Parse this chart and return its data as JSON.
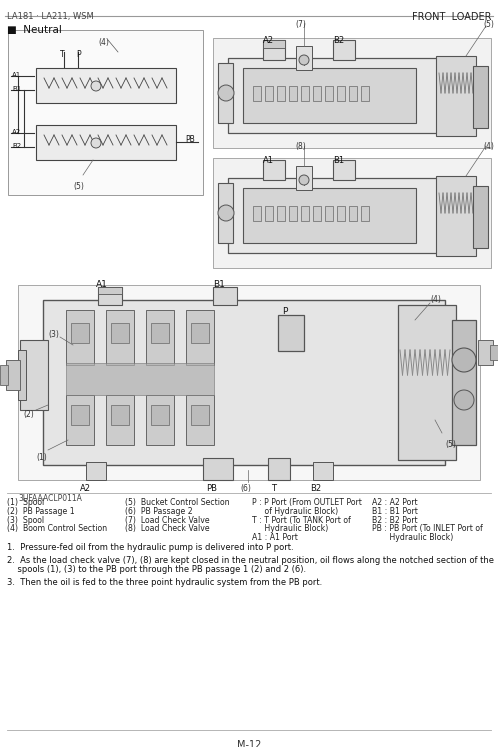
{
  "page_bg": "#f5f5f0",
  "header_left": "LA181 · LA211, WSM",
  "header_right": "FRONT  LOADER",
  "section_title": "■  Neutral",
  "footer_page": "M-12",
  "diagram_code": "3UFAAACLP011A",
  "legend_col1": [
    "(1)  Spool",
    "(2)  PB Passage 1",
    "(3)  Spool",
    "(4)  Boom Control Section"
  ],
  "legend_col2": [
    "(5)  Bucket Control Section",
    "(6)  PB Passage 2",
    "(7)  Load Check Valve",
    "(8)  Load Check Valve"
  ],
  "legend_col3_line1": "P : P Port (From OUTLET Port",
  "legend_col3_line2": "     of Hydraulic Block)",
  "legend_col3_line3": "T : T Port (To TANK Port of",
  "legend_col3_line4": "     Hydraulic Block)",
  "legend_col3_line5": "A1 : A1 Port",
  "legend_col4_line1": "A2 : A2 Port",
  "legend_col4_line2": "B1 : B1 Port",
  "legend_col4_line3": "B2 : B2 Port",
  "legend_col4_line4": "PB : PB Port (To INLET Port of",
  "legend_col4_line5": "       Hydraulic Block)",
  "note1": "1.  Pressure-fed oil from the hydraulic pump is delivered into P port.",
  "note2a": "2.  As the load check valve (7), (8) are kept closed in the neutral position, oil flows along the notched section of the",
  "note2b": "    spools (1), (3) to the PB port through the PB passage 1 (2) and 2 (6).",
  "note3": "3.  Then the oil is fed to the three point hydraulic system from the PB port.",
  "lfs": 5.6,
  "nfs": 6.0
}
